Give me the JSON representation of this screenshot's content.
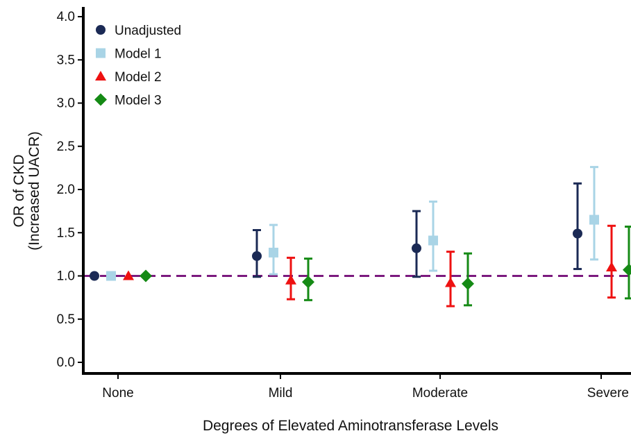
{
  "chart_data": {
    "type": "scatter",
    "subtype": "point-with-error-bars",
    "categories": [
      "None",
      "Mild",
      "Moderate",
      "Severe"
    ],
    "xlabel": "Degrees of Elevated Aminotransferase Levels",
    "ylabel_line1": "OR of CKD",
    "ylabel_line2": "(Increased UACR)",
    "ylim": [
      0,
      4.0
    ],
    "yticks": [
      "0.0",
      "0.5",
      "1.0",
      "1.5",
      "2.0",
      "2.5",
      "3.0",
      "3.5",
      "4.0"
    ],
    "grid": false,
    "legend_position": "top-left",
    "reference_line": {
      "y": 1.0,
      "style": "dashed",
      "color": "#7b1a7e"
    },
    "series": [
      {
        "name": "Unadjusted",
        "marker": "circle",
        "color": "#1b2a55",
        "values": [
          1.0,
          1.23,
          1.32,
          1.49
        ],
        "lower": [
          1.0,
          0.99,
          0.99,
          1.08
        ],
        "upper": [
          1.0,
          1.53,
          1.75,
          2.07
        ]
      },
      {
        "name": "Model 1",
        "marker": "square",
        "color": "#a9d4e6",
        "values": [
          1.0,
          1.27,
          1.41,
          1.65
        ],
        "lower": [
          1.0,
          1.02,
          1.06,
          1.19
        ],
        "upper": [
          1.0,
          1.59,
          1.86,
          2.26
        ]
      },
      {
        "name": "Model 2",
        "marker": "triangle",
        "color": "#ee1111",
        "values": [
          1.0,
          0.95,
          0.92,
          1.1
        ],
        "lower": [
          1.0,
          0.73,
          0.65,
          0.75
        ],
        "upper": [
          1.0,
          1.21,
          1.28,
          1.58
        ]
      },
      {
        "name": "Model 3",
        "marker": "diamond",
        "color": "#158a15",
        "values": [
          1.0,
          0.93,
          0.91,
          1.07
        ],
        "lower": [
          1.0,
          0.72,
          0.66,
          0.74
        ],
        "upper": [
          1.0,
          1.2,
          1.26,
          1.57
        ]
      }
    ]
  }
}
